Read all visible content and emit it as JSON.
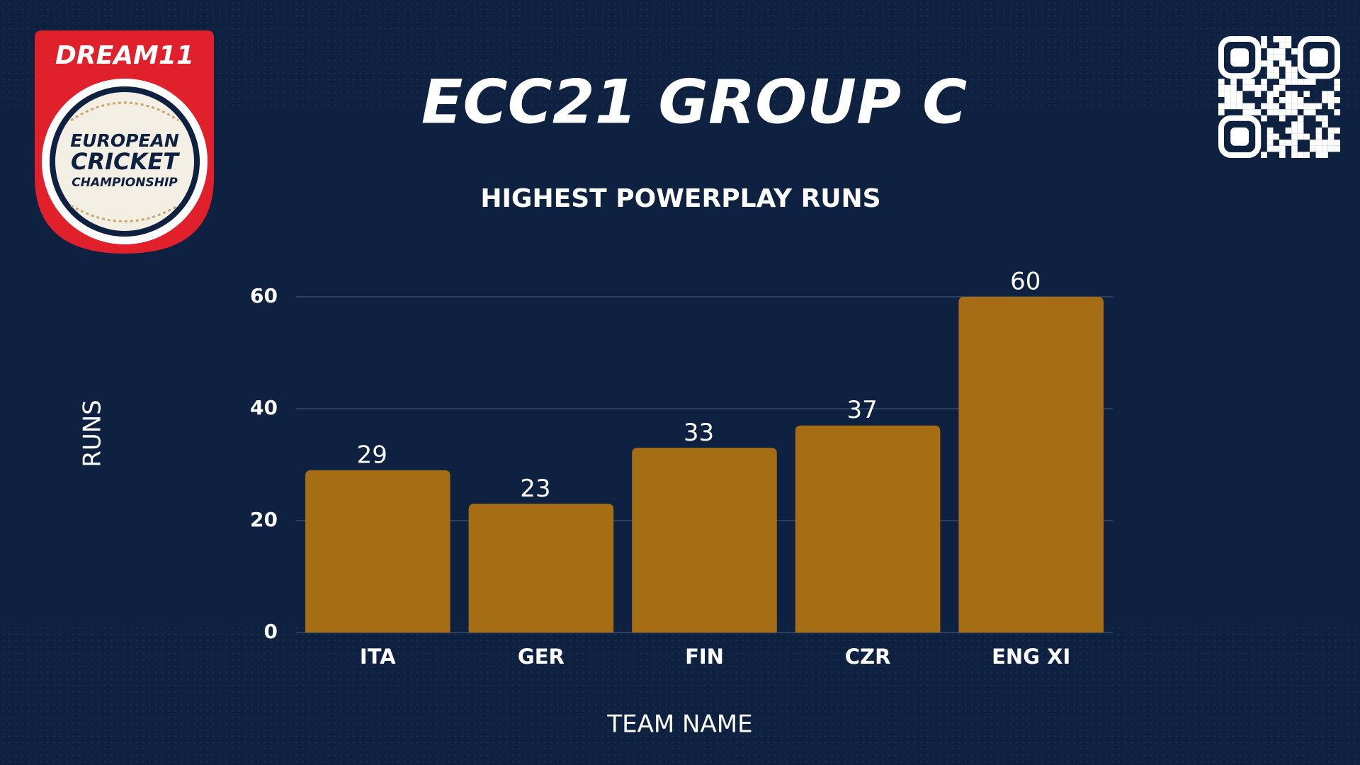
{
  "header": {
    "title": "ECC21 GROUP C"
  },
  "logo": {
    "brand": "DREAM11",
    "line1": "EUROPEAN",
    "line2": "CRICKET",
    "line3": "CHAMPIONSHIP"
  },
  "chart_data": {
    "type": "bar",
    "title": "HIGHEST POWERPLAY RUNS",
    "x_label": "TEAM NAME",
    "y_label": "RUNS",
    "categories": [
      "ITA",
      "GER",
      "FIN",
      "CZR",
      "ENG XI"
    ],
    "values": [
      29,
      23,
      33,
      37,
      60
    ],
    "color": "#a56e14",
    "ylim": [
      0,
      60
    ],
    "yticks": [
      0,
      20,
      40,
      60
    ],
    "grid": true
  }
}
